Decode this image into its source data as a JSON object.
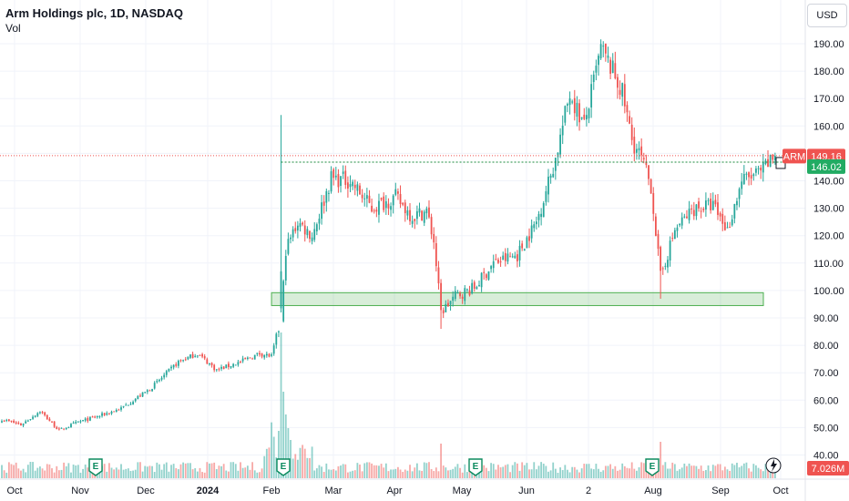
{
  "header": {
    "title": "Arm Holdings plc, 1D, NASDAQ",
    "volume_label": "Vol"
  },
  "currency_button": "USD",
  "colors": {
    "up": "#26a69a",
    "down": "#ef5350",
    "support_zone": "#4caf50",
    "grid": "#f0f3fa",
    "text": "#131722"
  },
  "chart_data": {
    "type": "candlestick",
    "symbol": "ARM",
    "interval": "1D",
    "ylim": [
      38,
      196
    ],
    "y_ticks": [
      40,
      50,
      60,
      70,
      80,
      90,
      100,
      110,
      120,
      130,
      140,
      150,
      160,
      170,
      180,
      190
    ],
    "x_ticks": [
      {
        "label": "Oct",
        "bold": false
      },
      {
        "label": "Nov",
        "bold": false
      },
      {
        "label": "Dec",
        "bold": false
      },
      {
        "label": "2024",
        "bold": true
      },
      {
        "label": "Feb",
        "bold": false
      },
      {
        "label": "Mar",
        "bold": false
      },
      {
        "label": "Apr",
        "bold": false
      },
      {
        "label": "May",
        "bold": false
      },
      {
        "label": "Jun",
        "bold": false
      },
      {
        "label": "2",
        "bold": false
      },
      {
        "label": "Aug",
        "bold": false
      },
      {
        "label": "Sep",
        "bold": false
      },
      {
        "label": "Oct",
        "bold": false
      }
    ],
    "close_anchors": [
      [
        0,
        53
      ],
      [
        8,
        51
      ],
      [
        16,
        56
      ],
      [
        24,
        49
      ],
      [
        32,
        52
      ],
      [
        40,
        54
      ],
      [
        50,
        57
      ],
      [
        62,
        64
      ],
      [
        74,
        74
      ],
      [
        82,
        77
      ],
      [
        90,
        71
      ],
      [
        100,
        74
      ],
      [
        108,
        77
      ],
      [
        113,
        76
      ],
      [
        117,
        89
      ],
      [
        119,
        115
      ],
      [
        124,
        125
      ],
      [
        130,
        120
      ],
      [
        138,
        141
      ],
      [
        146,
        140
      ],
      [
        155,
        130
      ],
      [
        165,
        134
      ],
      [
        172,
        127
      ],
      [
        178,
        129
      ],
      [
        181,
        118
      ],
      [
        184,
        92
      ],
      [
        190,
        98
      ],
      [
        198,
        101
      ],
      [
        206,
        110
      ],
      [
        216,
        113
      ],
      [
        224,
        125
      ],
      [
        232,
        148
      ],
      [
        238,
        172
      ],
      [
        244,
        160
      ],
      [
        251,
        188
      ],
      [
        256,
        180
      ],
      [
        260,
        172
      ],
      [
        264,
        155
      ],
      [
        268,
        148
      ],
      [
        272,
        138
      ],
      [
        276,
        105
      ],
      [
        282,
        122
      ],
      [
        290,
        130
      ],
      [
        298,
        131
      ],
      [
        304,
        122
      ],
      [
        310,
        140
      ],
      [
        318,
        143
      ],
      [
        324,
        149.16
      ]
    ],
    "support_zone": {
      "low": 94.5,
      "high": 99.2
    },
    "reference_line": 146.8,
    "last_price": {
      "symbol": "ARM",
      "value": "149.16"
    },
    "alert_price": {
      "value": "146.02"
    },
    "volume_label": "7.026M",
    "earnings_markers": [
      {
        "label": "E"
      },
      {
        "label": "E"
      },
      {
        "label": "E"
      },
      {
        "label": "E"
      }
    ]
  }
}
